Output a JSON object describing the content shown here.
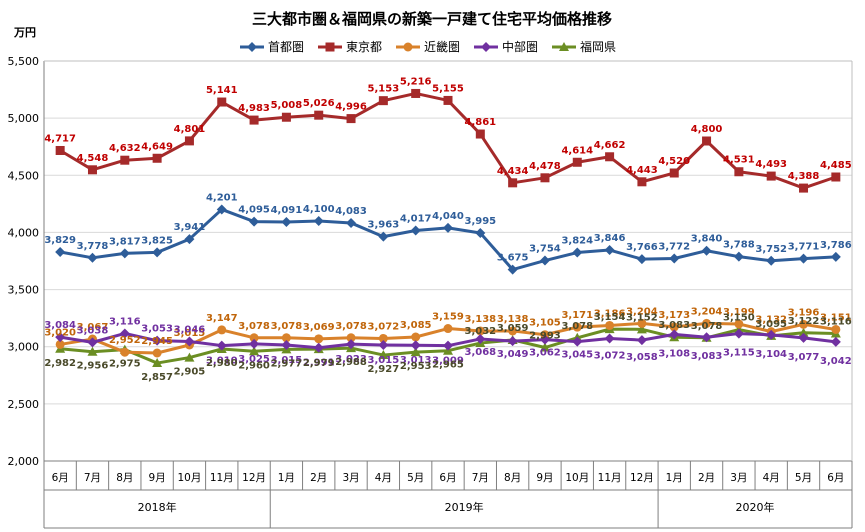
{
  "chart_data": {
    "type": "line",
    "title": "三大都市圏＆福岡県の新築一戸建て住宅平均価格推移",
    "ylabel": "万円",
    "ylim": [
      2000,
      5500
    ],
    "yticks": [
      "2,000",
      "2,500",
      "3,000",
      "3,500",
      "4,000",
      "4,500",
      "5,000",
      "5,500"
    ],
    "grid": true,
    "legend_position": "top",
    "categories": [
      "6月",
      "7月",
      "8月",
      "9月",
      "10月",
      "11月",
      "12月",
      "1月",
      "2月",
      "3月",
      "4月",
      "5月",
      "6月",
      "7月",
      "8月",
      "9月",
      "10月",
      "11月",
      "12月",
      "1月",
      "2月",
      "3月",
      "4月",
      "5月",
      "6月"
    ],
    "year_groups": [
      {
        "label": "2018年",
        "start": 0,
        "end": 6
      },
      {
        "label": "2019年",
        "start": 7,
        "end": 18
      },
      {
        "label": "2020年",
        "start": 19,
        "end": 24
      }
    ],
    "series": [
      {
        "name": "首都圏",
        "color": "#2E5D99",
        "marker": "diamond",
        "label_pos": "above",
        "values": [
          3829,
          3778,
          3817,
          3825,
          3941,
          4201,
          4095,
          4091,
          4100,
          4083,
          3963,
          4017,
          4040,
          3995,
          3675,
          3754,
          3824,
          3846,
          3766,
          3772,
          3840,
          3788,
          3752,
          3771,
          3786
        ],
        "labels": [
          "3,829",
          "3,778",
          "3,817",
          "3,825",
          "3,941",
          "4,201",
          "4,095",
          "4,091",
          "4,100",
          "4,083",
          "3,963",
          "4,017",
          "4,040",
          "3,995",
          "3,675",
          "3,754",
          "3,824",
          "3,846",
          "3,766",
          "3,772",
          "3,840",
          "3,788",
          "3,752",
          "3,771",
          "3,786"
        ]
      },
      {
        "name": "東京都",
        "color": "#A52A2A",
        "label_color": "#C00000",
        "marker": "square",
        "label_pos": "above",
        "values": [
          4717,
          4548,
          4632,
          4649,
          4801,
          5141,
          4983,
          5008,
          5026,
          4996,
          5153,
          5216,
          5155,
          4861,
          4434,
          4478,
          4614,
          4662,
          4443,
          4520,
          4800,
          4531,
          4493,
          4388,
          4485
        ],
        "labels": [
          "4,717",
          "4,548",
          "4,632",
          "4,649",
          "4,801",
          "5,141",
          "4,983",
          "5,008",
          "5,026",
          "4,996",
          "5,153",
          "5,216",
          "5,155",
          "4,861",
          "4,434",
          "4,478",
          "4,614",
          "4,662",
          "4,443",
          "4,520",
          "4,800",
          "4,531",
          "4,493",
          "4,388",
          "4,485"
        ]
      },
      {
        "name": "近畿圏",
        "color": "#D9822B",
        "label_color": "#C0650A",
        "marker": "circle",
        "label_pos": "above",
        "values": [
          3020,
          3067,
          2952,
          2945,
          3015,
          3147,
          3078,
          3078,
          3069,
          3078,
          3072,
          3085,
          3159,
          3138,
          3138,
          3105,
          3171,
          3186,
          3204,
          3173,
          3204,
          3199,
          3132,
          3196,
          3151
        ],
        "labels": [
          "3,020",
          "3,067",
          "2,952",
          "2,945",
          "3,015",
          "3,147",
          "3,078",
          "3,078",
          "3,069",
          "3,078",
          "3,072",
          "3,085",
          "3,159",
          "3,138",
          "3,138",
          "3,105",
          "3,171",
          "3,186",
          "3,204",
          "3,173",
          "3,204",
          "3,199",
          "3,132",
          "3,196",
          "3,151"
        ]
      },
      {
        "name": "中部圏",
        "color": "#7030A0",
        "marker": "diamond",
        "label_pos": "mixed",
        "values": [
          3084,
          3038,
          3116,
          3053,
          3046,
          3010,
          3025,
          3015,
          2991,
          3023,
          3015,
          3013,
          3009,
          3068,
          3049,
          3062,
          3045,
          3072,
          3058,
          3108,
          3083,
          3115,
          3104,
          3077,
          3042
        ],
        "labels": [
          "3,084",
          "3,038",
          "3,116",
          "3,053",
          "3,046",
          "3,010",
          "3,025",
          "3,015",
          "2,991",
          "3,023",
          "3,015",
          "3,013",
          "3,009",
          "3,068",
          "3,049",
          "3,062",
          "3,045",
          "3,072",
          "3,058",
          "3,108",
          "3,083",
          "3,115",
          "3,104",
          "3,077",
          "3,042"
        ]
      },
      {
        "name": "福岡県",
        "color": "#6B8E23",
        "label_color": "#4A4A2A",
        "marker": "triangle",
        "label_pos": "below",
        "values": [
          2982,
          2956,
          2975,
          2857,
          2905,
          2980,
          2960,
          2977,
          2979,
          2988,
          2927,
          2953,
          2965,
          3032,
          3059,
          2993,
          3078,
          3154,
          3152,
          3083,
          3078,
          3150,
          3095,
          3122,
          3116
        ],
        "labels": [
          "2,982",
          "2,956",
          "2,975",
          "2,857",
          "2,905",
          "2,980",
          "2,960",
          "2,977",
          "2,979",
          "2,988",
          "2,927",
          "2,953",
          "2,965",
          "3,032",
          "3,059",
          "2,993",
          "3,078",
          "3,154",
          "3,152",
          "3,083",
          "3,078",
          "3,150",
          "3,095",
          "3,122",
          "3,116"
        ]
      }
    ]
  }
}
